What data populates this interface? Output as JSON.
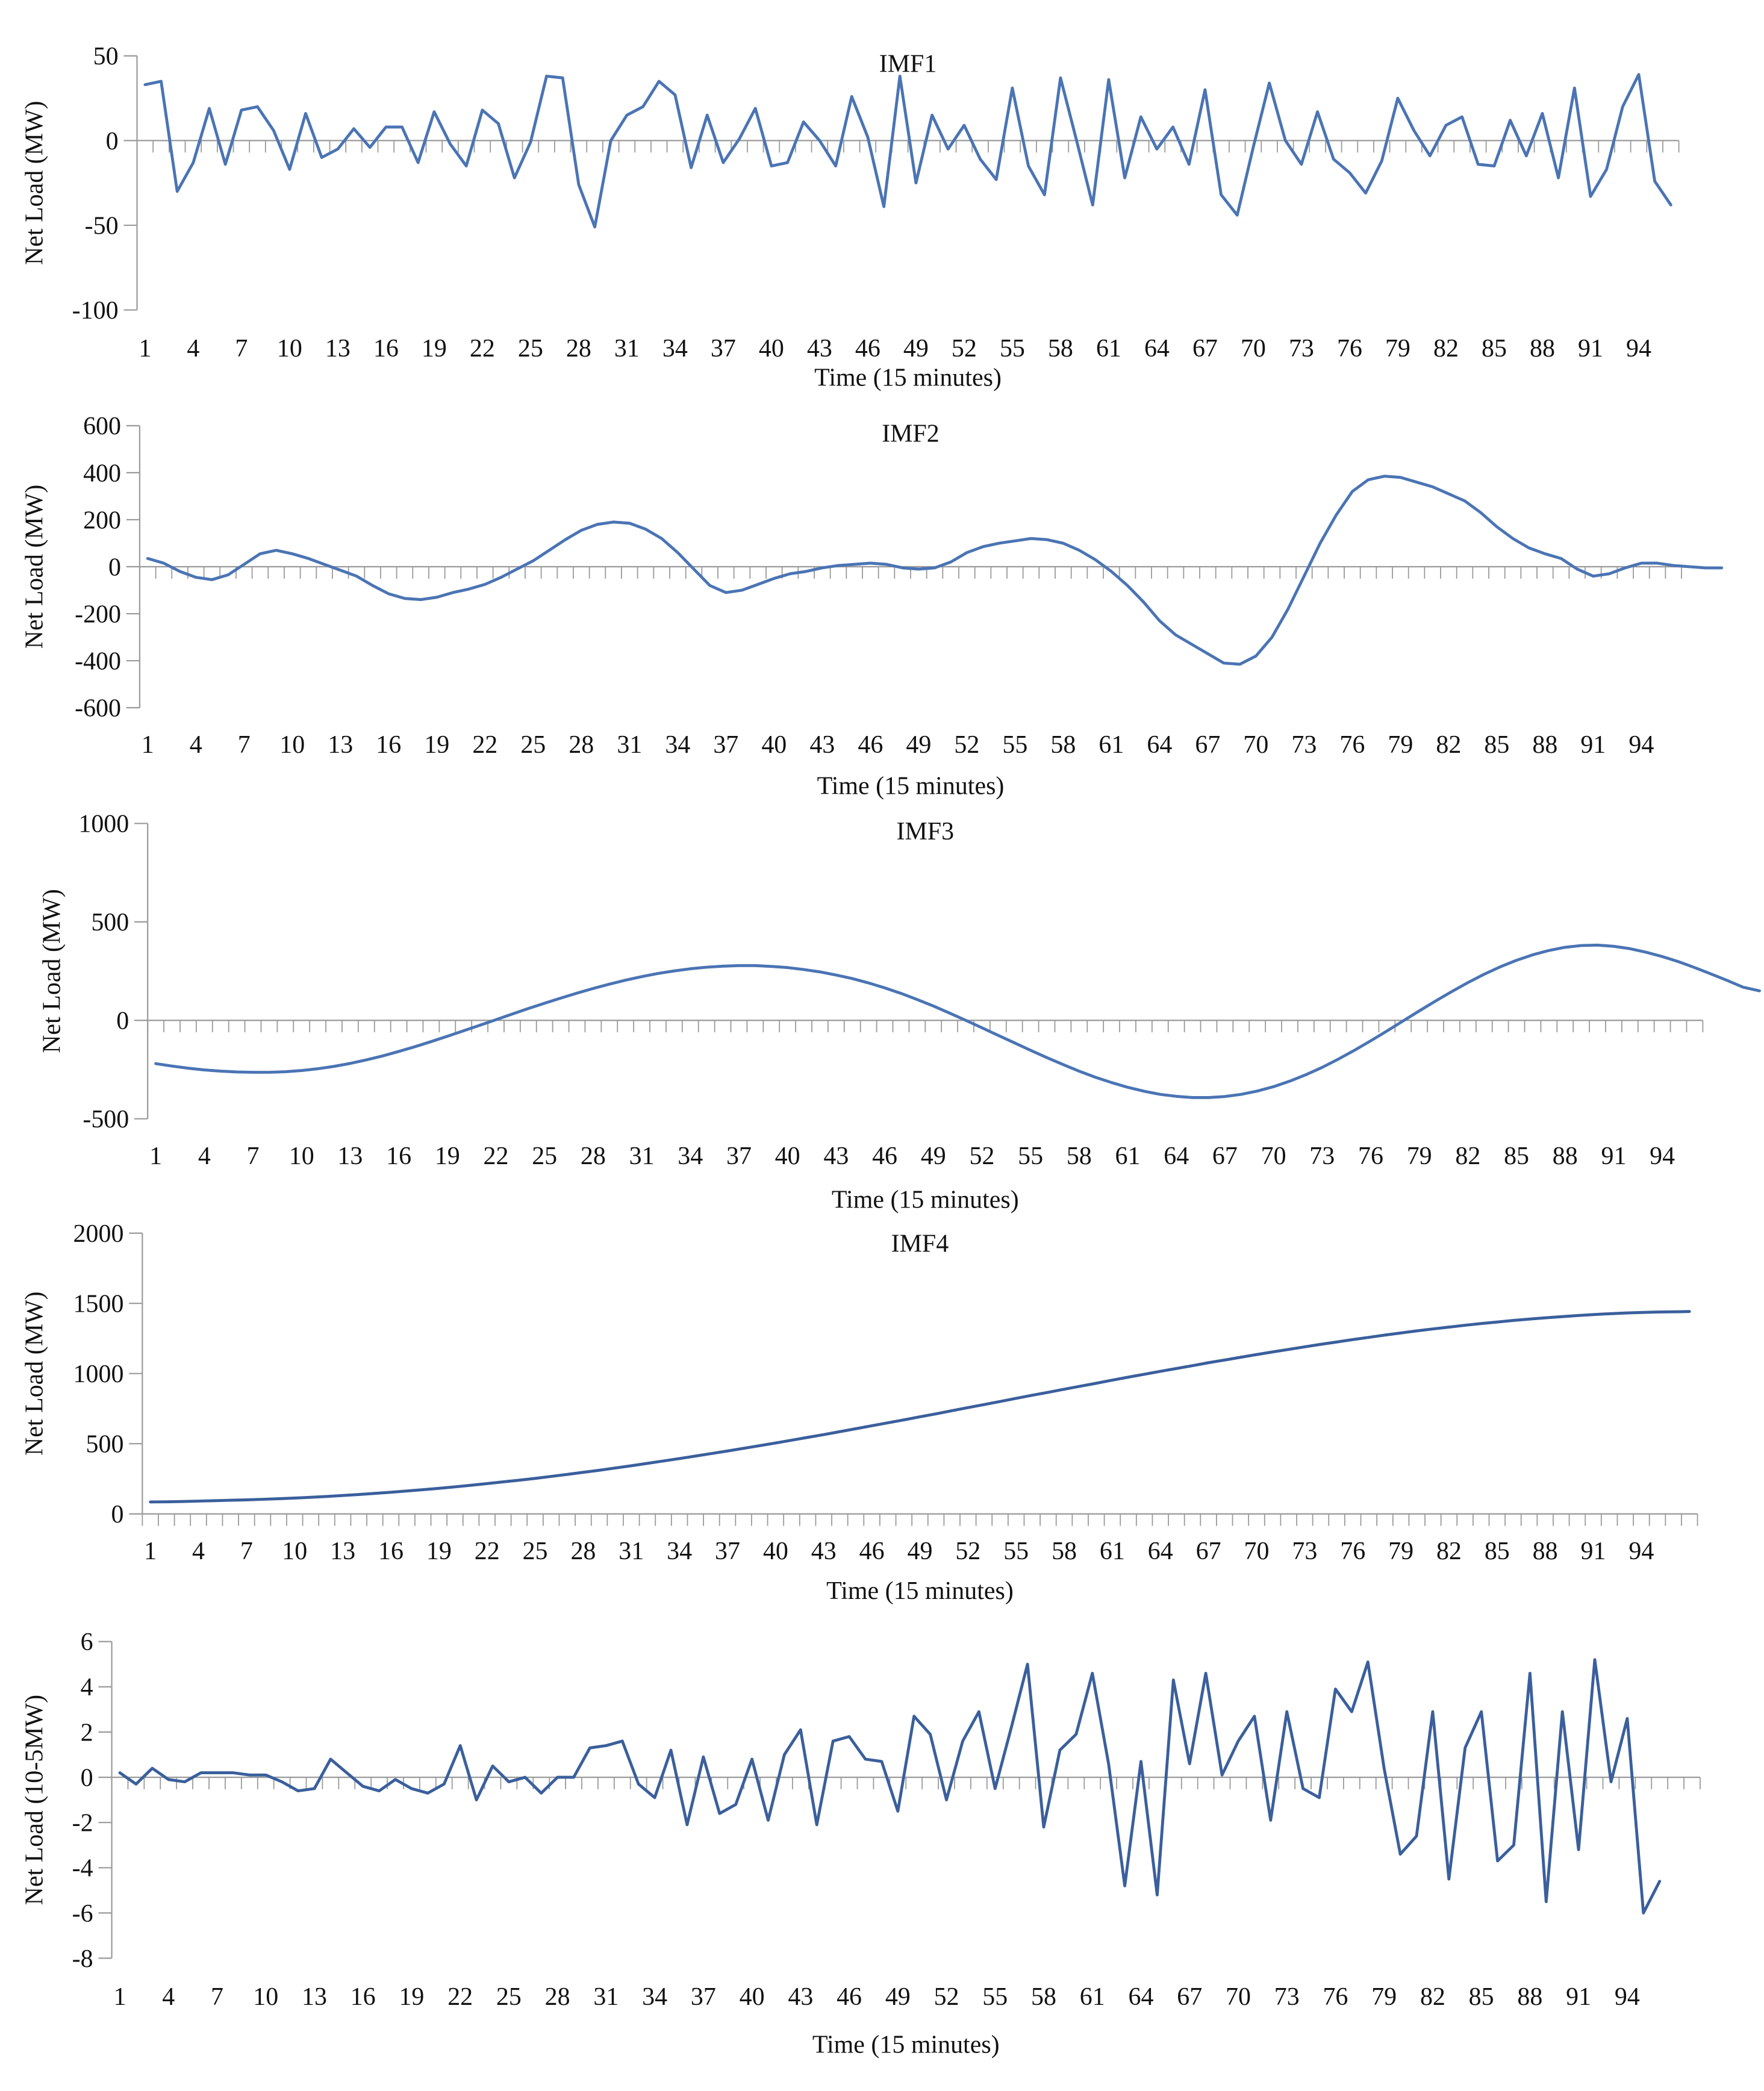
{
  "figure": {
    "line_color": "#4a74b4",
    "line_color_dark": "#3a5f9c",
    "axis_color": "#9a9a9a"
  },
  "chart_data": [
    {
      "type": "line",
      "title": "IMF1",
      "xlabel": "Time (15 minutes)",
      "ylabel": "Net Load (MW)",
      "ylim": [
        -100,
        50
      ],
      "yticks": [
        50,
        0,
        -50,
        -100
      ],
      "grid": false,
      "x_tick_labels": [
        "1",
        "4",
        "7",
        "10",
        "13",
        "16",
        "19",
        "22",
        "25",
        "28",
        "31",
        "34",
        "37",
        "40",
        "43",
        "46",
        "49",
        "52",
        "55",
        "58",
        "61",
        "64",
        "67",
        "70",
        "73",
        "76",
        "79",
        "82",
        "85",
        "88",
        "91",
        "94"
      ],
      "series": [
        {
          "values": [
            33,
            35,
            -30,
            -13,
            19,
            -14,
            18,
            20,
            6,
            -17,
            16,
            -10,
            -5,
            7,
            -4,
            8,
            8,
            -13,
            17,
            -2,
            -15,
            18,
            10,
            -22,
            -1,
            38,
            37,
            -26,
            -51,
            0,
            15,
            20,
            35,
            27,
            -16,
            15,
            -13,
            1,
            19,
            -15,
            -13,
            11,
            0,
            -15,
            26,
            2,
            -39,
            38,
            -25,
            15,
            -5,
            9,
            -11,
            -23,
            31,
            -15,
            -32,
            37,
            0,
            -38,
            36,
            -22,
            14,
            -5,
            8,
            -14,
            30,
            -32,
            -44,
            -4,
            34,
            0,
            -14,
            17,
            -11,
            -19,
            -31,
            -12,
            25,
            6,
            -9,
            9,
            14,
            -14,
            -15,
            12,
            -9,
            16,
            -22,
            31,
            -33,
            -17,
            20,
            39,
            -24,
            -38
          ]
        }
      ]
    },
    {
      "type": "line",
      "title": "IMF2",
      "xlabel": "Time (15 minutes)",
      "ylabel": "Net Load (MW)",
      "ylim": [
        -600,
        600
      ],
      "yticks": [
        600,
        400,
        200,
        0,
        -200,
        -400,
        -600
      ],
      "grid": false,
      "x_tick_labels": [
        "1",
        "4",
        "7",
        "10",
        "13",
        "16",
        "19",
        "22",
        "25",
        "28",
        "31",
        "34",
        "37",
        "40",
        "43",
        "46",
        "49",
        "52",
        "55",
        "58",
        "61",
        "64",
        "67",
        "70",
        "73",
        "76",
        "79",
        "82",
        "85",
        "88",
        "91",
        "94"
      ],
      "series": [
        {
          "values": [
            35,
            15,
            -20,
            -45,
            -55,
            -35,
            10,
            55,
            70,
            55,
            35,
            10,
            -15,
            -40,
            -80,
            -115,
            -135,
            -140,
            -130,
            -110,
            -95,
            -75,
            -45,
            -10,
            25,
            70,
            115,
            155,
            180,
            190,
            185,
            160,
            120,
            60,
            -10,
            -80,
            -110,
            -100,
            -75,
            -50,
            -30,
            -20,
            -5,
            5,
            10,
            15,
            10,
            -5,
            -10,
            -5,
            20,
            60,
            85,
            100,
            110,
            120,
            115,
            100,
            70,
            30,
            -20,
            -80,
            -150,
            -230,
            -290,
            -330,
            -370,
            -410,
            -415,
            -380,
            -300,
            -180,
            -40,
            100,
            220,
            320,
            370,
            385,
            380,
            360,
            340,
            310,
            280,
            230,
            170,
            120,
            80,
            55,
            35,
            -10,
            -40,
            -30,
            -5,
            15,
            15,
            5,
            0,
            -5,
            -5
          ]
        }
      ]
    },
    {
      "type": "line",
      "title": "IMF3",
      "xlabel": "Time (15 minutes)",
      "ylabel": "Net Load (MW)",
      "ylim": [
        -500,
        1000
      ],
      "yticks": [
        1000,
        500,
        0,
        -500
      ],
      "grid": false,
      "x_tick_labels": [
        "1",
        "4",
        "7",
        "10",
        "13",
        "16",
        "19",
        "22",
        "25",
        "28",
        "31",
        "34",
        "37",
        "40",
        "43",
        "46",
        "49",
        "52",
        "55",
        "58",
        "61",
        "64",
        "67",
        "70",
        "73",
        "76",
        "79",
        "82",
        "85",
        "88",
        "91",
        "94"
      ],
      "series": [
        {
          "values": [
            -220,
            -232,
            -243,
            -252,
            -258,
            -262,
            -264,
            -264,
            -261,
            -255,
            -246,
            -234,
            -219,
            -201,
            -181,
            -158,
            -134,
            -108,
            -81,
            -53,
            -25,
            3,
            32,
            60,
            87,
            113,
            138,
            162,
            184,
            204,
            222,
            238,
            251,
            262,
            270,
            275,
            278,
            278,
            274,
            268,
            258,
            246,
            230,
            212,
            190,
            165,
            137,
            106,
            73,
            37,
            0,
            -38,
            -76,
            -114,
            -152,
            -189,
            -224,
            -258,
            -289,
            -316,
            -340,
            -360,
            -376,
            -386,
            -392,
            -392,
            -387,
            -376,
            -359,
            -337,
            -309,
            -276,
            -239,
            -197,
            -152,
            -104,
            -54,
            -3,
            48,
            98,
            146,
            192,
            234,
            272,
            305,
            333,
            355,
            371,
            380,
            382,
            376,
            364,
            346,
            324,
            298,
            268,
            236,
            203,
            168,
            150
          ]
        }
      ]
    },
    {
      "type": "line",
      "title": "IMF4",
      "xlabel": "Time (15 minutes)",
      "ylabel": "Net Load (MW)",
      "ylim": [
        0,
        2000
      ],
      "yticks": [
        2000,
        1500,
        1000,
        500,
        0
      ],
      "grid": false,
      "x_tick_labels": [
        "1",
        "4",
        "7",
        "10",
        "13",
        "16",
        "19",
        "22",
        "25",
        "28",
        "31",
        "34",
        "37",
        "40",
        "43",
        "46",
        "49",
        "52",
        "55",
        "58",
        "61",
        "64",
        "67",
        "70",
        "73",
        "76",
        "79",
        "82",
        "85",
        "88",
        "91",
        "94"
      ],
      "series": [
        {
          "values": [
            85,
            86,
            88,
            91,
            94,
            97,
            100,
            104,
            108,
            113,
            118,
            124,
            131,
            138,
            146,
            154,
            163,
            172,
            182,
            193,
            204,
            216,
            228,
            240,
            253,
            267,
            281,
            296,
            311,
            327,
            343,
            360,
            377,
            394,
            412,
            430,
            448,
            467,
            486,
            505,
            525,
            545,
            565,
            586,
            607,
            628,
            649,
            670,
            692,
            713,
            735,
            757,
            779,
            801,
            823,
            845,
            866,
            888,
            910,
            931,
            953,
            974,
            995,
            1016,
            1036,
            1056,
            1077,
            1096,
            1116,
            1135,
            1154,
            1172,
            1190,
            1208,
            1225,
            1242,
            1258,
            1274,
            1289,
            1304,
            1318,
            1331,
            1344,
            1356,
            1367,
            1378,
            1388,
            1397,
            1405,
            1413,
            1420,
            1426,
            1431,
            1435,
            1438,
            1440,
            1442
          ]
        }
      ]
    },
    {
      "type": "line",
      "title": "",
      "xlabel": "Time (15 minutes)",
      "ylabel": "Net Load (10-5MW)",
      "ylim": [
        -8,
        6
      ],
      "yticks": [
        6,
        4,
        2,
        0,
        -2,
        -4,
        -6,
        -8
      ],
      "grid": false,
      "x_tick_labels": [
        "1",
        "4",
        "7",
        "10",
        "13",
        "16",
        "19",
        "22",
        "25",
        "28",
        "31",
        "34",
        "37",
        "40",
        "43",
        "46",
        "49",
        "52",
        "55",
        "58",
        "61",
        "64",
        "67",
        "70",
        "73",
        "76",
        "79",
        "82",
        "85",
        "88",
        "91",
        "94"
      ],
      "series": [
        {
          "values": [
            0.2,
            -0.3,
            0.4,
            -0.1,
            -0.2,
            0.2,
            0.2,
            0.2,
            0.1,
            0.1,
            -0.2,
            -0.6,
            -0.5,
            0.8,
            0.2,
            -0.4,
            -0.6,
            -0.1,
            -0.5,
            -0.7,
            -0.3,
            1.4,
            -1.0,
            0.5,
            -0.2,
            0.0,
            -0.7,
            0.0,
            0.0,
            1.3,
            1.4,
            1.6,
            -0.3,
            -0.9,
            1.2,
            -2.1,
            0.9,
            -1.6,
            -1.2,
            0.8,
            -1.9,
            1.0,
            2.1,
            -2.1,
            1.6,
            1.8,
            0.8,
            0.7,
            -1.5,
            2.7,
            1.9,
            -1.0,
            1.6,
            2.9,
            -0.5,
            2.2,
            5.0,
            -2.2,
            1.2,
            1.9,
            4.6,
            0.6,
            -4.8,
            0.7,
            -5.2,
            4.3,
            0.6,
            4.6,
            0.1,
            1.6,
            2.7,
            -1.9,
            2.9,
            -0.5,
            -0.9,
            3.9,
            2.9,
            5.1,
            0.4,
            -3.4,
            -2.6,
            2.9,
            -4.5,
            1.3,
            2.9,
            -3.7,
            -3.0,
            4.6,
            -5.5,
            2.9,
            -3.2,
            5.2,
            -0.2,
            2.6,
            -6.0,
            -4.6
          ]
        }
      ]
    }
  ]
}
